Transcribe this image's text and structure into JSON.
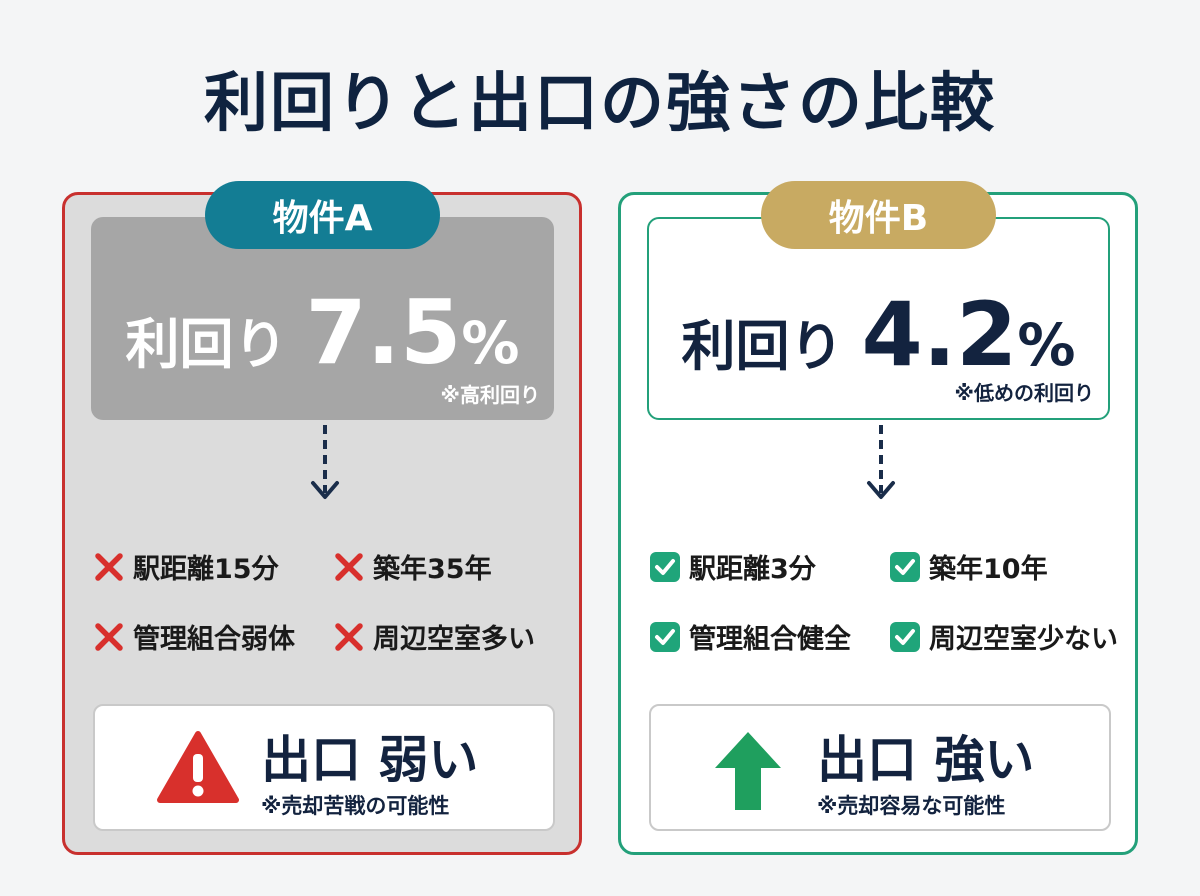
{
  "title": "利回りと出口の強さの比較",
  "cards": [
    {
      "badge": "物件A",
      "yield_label": "利回り",
      "yield_number": "7.5",
      "yield_unit": "%",
      "yield_note": "※高利回り",
      "items": [
        "駅距離15分",
        "築年35年",
        "管理組合弱体",
        "周辺空室多い"
      ],
      "outcome": "出口 弱い",
      "outcome_note": "※売却苦戦の可能性"
    },
    {
      "badge": "物件B",
      "yield_label": "利回り",
      "yield_number": "4.2",
      "yield_unit": "%",
      "yield_note": "※低めの利回り",
      "items": [
        "駅距離3分",
        "築年10年",
        "管理組合健全",
        "周辺空室少ない"
      ],
      "outcome": "出口 強い",
      "outcome_note": "※売却容易な可能性"
    }
  ]
}
